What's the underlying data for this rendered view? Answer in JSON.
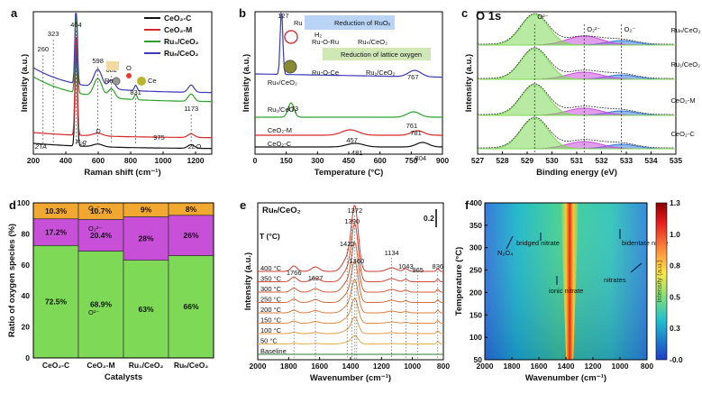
{
  "chart_data": [
    {
      "panel": "a",
      "type": "line",
      "xlabel": "Raman shift (cm⁻¹)",
      "ylabel": "Intensity (a.u.)",
      "xlim": [
        200,
        1300
      ],
      "xticks": [
        "200",
        "400",
        "600",
        "800",
        "1000",
        "1200"
      ],
      "legend": [
        {
          "name": "CeO₂-C",
          "color": "#111111"
        },
        {
          "name": "CeO₂-M",
          "color": "#d62728"
        },
        {
          "name": "Ru₁/CeO₂",
          "color": "#2ca02c"
        },
        {
          "name": "Ruₙ/CeO₂",
          "color": "#3b3bb5"
        }
      ],
      "peaks": [
        "260",
        "323",
        "464",
        "598",
        "682",
        "831",
        "975",
        "1173"
      ],
      "mode_labels": [
        "2TA",
        "F₂g",
        "D",
        "2LO"
      ],
      "inset_labels": [
        "Ru",
        "O",
        "Ce"
      ]
    },
    {
      "panel": "b",
      "type": "line",
      "xlabel": "Temperature (°C)",
      "ylabel": "Intensity (a.u.)",
      "xlim": [
        0,
        900
      ],
      "xticks": [
        "0",
        "150",
        "300",
        "450",
        "600",
        "750",
        "900"
      ],
      "series": [
        {
          "name": "Ruₙ/CeO₂",
          "color": "#3b3bb5",
          "peaks": [
            127,
            767
          ]
        },
        {
          "name": "Ru₁/CeO₂",
          "color": "#2ca02c",
          "peaks": [
            173,
            761
          ]
        },
        {
          "name": "CeO₂-M",
          "color": "#d62728",
          "peaks": [
            457,
            781
          ]
        },
        {
          "name": "CeO₂-C",
          "color": "#111111",
          "peaks": [
            481,
            804
          ]
        }
      ],
      "peak_labels": [
        "127",
        "767",
        "173",
        "761",
        "457",
        "781",
        "481",
        "804"
      ],
      "inset_labels": {
        "ru": "Ru",
        "h2": "H₂",
        "ruoru": "Ru-O-Ru",
        "ruoce": "Ru-O-Ce",
        "t1": "Reduction of RuOₓ",
        "t2": "Reduction of lattice oxygen",
        "s1": "Ruₙ/CeO₂",
        "s2": "Ru₁/CeO₂"
      }
    },
    {
      "panel": "c",
      "title": "O 1s",
      "type": "area",
      "xlabel": "Binding energy (eV)",
      "ylabel": "Intensity (a.u.)",
      "xlim": [
        535,
        527
      ],
      "reverse_x": true,
      "xticks": [
        "527",
        "528",
        "529",
        "530",
        "531",
        "532",
        "533",
        "534",
        "535"
      ],
      "components": [
        "O²⁻",
        "O₂²⁻",
        "O₂⁻"
      ],
      "samples": [
        "Ruₙ/CeO₂",
        "Ru₁/CeO₂",
        "CeO₂-M",
        "CeO₂-C"
      ],
      "component_centers_ev": [
        529.3,
        531.3,
        532.8
      ]
    },
    {
      "panel": "d",
      "type": "bar",
      "stacked": true,
      "xlabel": "Catalysts",
      "ylabel": "Ratio of oxygen species (%)",
      "ylim": [
        0,
        100
      ],
      "yticks": [
        "0",
        "20",
        "40",
        "60",
        "80",
        "100"
      ],
      "categories": [
        "CeO₂-C",
        "CeO₂-M",
        "Ru₁/CeO₂",
        "Ruₙ/CeO₂"
      ],
      "series": [
        {
          "name": "O²⁻",
          "color": "#7ed957",
          "values": [
            72.5,
            68.9,
            63,
            66
          ],
          "labels": [
            "72.5%",
            "68.9%",
            "63%",
            "66%"
          ]
        },
        {
          "name": "O₂²⁻",
          "color": "#c84fd8",
          "values": [
            17.2,
            20.4,
            28,
            26
          ],
          "labels": [
            "17.2%",
            "20.4%",
            "28%",
            "26%"
          ]
        },
        {
          "name": "O₂⁻",
          "color": "#f0a830",
          "values": [
            10.3,
            10.7,
            9,
            8
          ],
          "labels": [
            "10.3%",
            "10.7%",
            "9%",
            "8%"
          ]
        }
      ]
    },
    {
      "panel": "e",
      "title": "Ruₙ/CeO₂",
      "type": "line",
      "xlabel": "Wavenumber (cm⁻¹)",
      "ylabel": "Intensity (a.u.)",
      "xlim": [
        2000,
        800
      ],
      "reverse_x": true,
      "xticks": [
        "2000",
        "1800",
        "1600",
        "1400",
        "1200",
        "1000",
        "800"
      ],
      "temp_header": "T (°C)",
      "temperatures": [
        "400 °C",
        "350 °C",
        "300 °C",
        "250 °C",
        "200 °C",
        "150 °C",
        "100 °C",
        "50 °C",
        "Baseline"
      ],
      "peaks": [
        "1372",
        "1390",
        "1422",
        "1360",
        "1134",
        "1766",
        "1627",
        "1043",
        "965",
        "836"
      ],
      "scale_bar": "0.2"
    },
    {
      "panel": "f",
      "type": "heatmap",
      "xlabel": "Wavenumber (cm⁻¹)",
      "ylabel": "Temperature (°C)",
      "xlim": [
        2000,
        800
      ],
      "ylim": [
        50,
        400
      ],
      "reverse_x": true,
      "xticks": [
        "2000",
        "1800",
        "1600",
        "1400",
        "1200",
        "1000",
        "800"
      ],
      "yticks": [
        "50",
        "100",
        "150",
        "200",
        "250",
        "300",
        "350",
        "400"
      ],
      "colorbar": {
        "label": "Intensity (a.u.)",
        "range": [
          -0.0,
          1.3
        ],
        "ticks": [
          "1.3",
          "1.0",
          "0.8",
          "0.5",
          "0.3",
          "-0.0"
        ]
      },
      "annotations": [
        "N₂O₄",
        "bridged nitrate",
        "bidentate nitrite",
        "nitrates",
        "ionic nitrate"
      ]
    }
  ]
}
